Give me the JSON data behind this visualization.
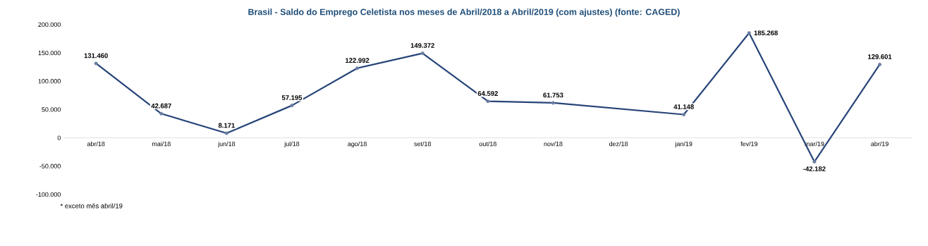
{
  "chart_data": {
    "type": "line",
    "title": "Brasil - Saldo do Emprego Celetista nos meses de Abril/2018 a Abril/2019 (com ajustes) (fonte: CAGED)",
    "categories": [
      "abr/18",
      "mai/18",
      "jun/18",
      "jul/18",
      "ago/18",
      "set/18",
      "out/18",
      "nov/18",
      "dez/18",
      "jan/19",
      "fev/19",
      "mar/19",
      "abr/19"
    ],
    "series": [
      {
        "color": "#264478",
        "values": [
          131460,
          42687,
          8171,
          57195,
          122992,
          149372,
          64592,
          61753,
          null,
          41148,
          185268,
          -42182,
          129601
        ],
        "value_labels": [
          "131.460",
          "42.687",
          "8.171",
          "57.195",
          "122.992",
          "149.372",
          "64.592",
          "61.753",
          null,
          "41.148",
          "185.268",
          "-42.182",
          "129.601"
        ]
      }
    ],
    "ylim": [
      -100000,
      200000
    ],
    "yticks": [
      {
        "value": -100000,
        "label": "-100.000"
      },
      {
        "value": -50000,
        "label": "-50.000"
      },
      {
        "value": 0,
        "label": "0"
      },
      {
        "value": 50000,
        "label": "50.000"
      },
      {
        "value": 100000,
        "label": "100.000"
      },
      {
        "value": 150000,
        "label": "150.000"
      },
      {
        "value": 200000,
        "label": "200.000"
      }
    ],
    "marker": "circle",
    "line_style": "solid",
    "annotations": [
      "* exceto mês abril/19"
    ]
  }
}
